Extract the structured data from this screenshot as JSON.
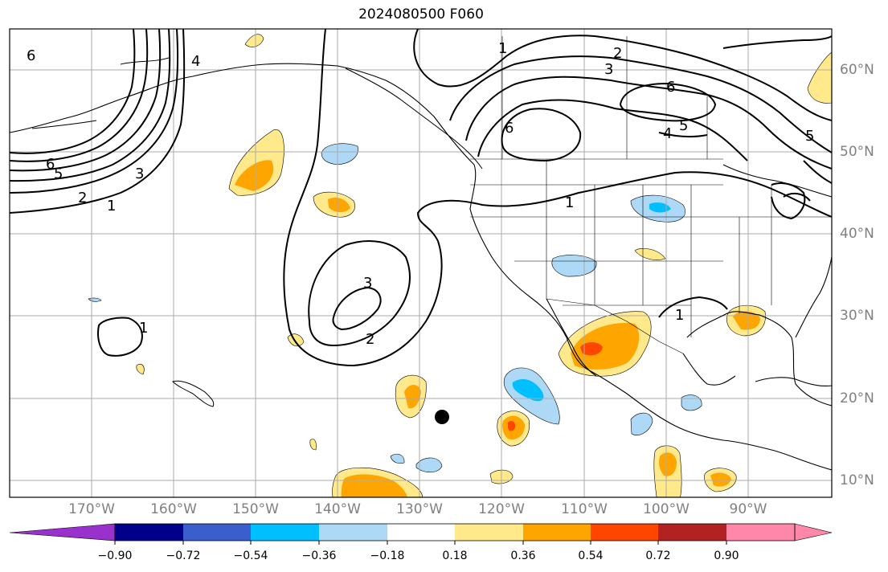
{
  "title": "2024080500 F060",
  "lon_labels": [
    "170°W",
    "160°W",
    "150°W",
    "140°W",
    "130°W",
    "120°W",
    "110°W",
    "100°W",
    "90°W"
  ],
  "lat_labels": [
    "60°N",
    "50°N",
    "40°N",
    "30°N",
    "20°N",
    "10°N"
  ],
  "colorbar": {
    "ticks": [
      "−0.90",
      "−0.72",
      "−0.54",
      "−0.36",
      "−0.18",
      "0.18",
      "0.36",
      "0.54",
      "0.72",
      "0.90"
    ],
    "colors": [
      "#9932cc",
      "#00008b",
      "#3a5fcd",
      "#00bfff",
      "#add8f6",
      "#ffffff",
      "#ffe98a",
      "#ffa500",
      "#ff4500",
      "#b22222",
      "#ff88aa"
    ]
  },
  "contour_labels": [
    "1",
    "2",
    "3",
    "6",
    "5",
    "4",
    "6",
    "2",
    "3",
    "6",
    "6",
    "5",
    "4",
    "1",
    "1",
    "3",
    "2",
    "1",
    "1",
    "5"
  ],
  "colors": {
    "land_line": "#000000",
    "grid": "#aaaaaa"
  }
}
